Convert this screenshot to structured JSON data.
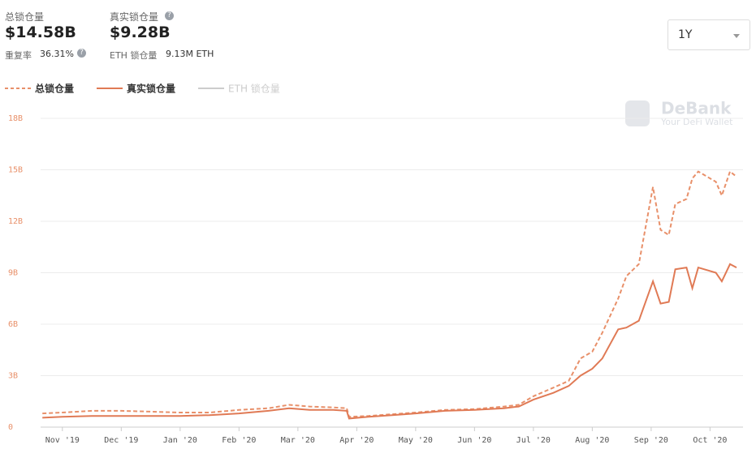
{
  "header": {
    "tvl_label": "总锁仓量",
    "tvl_value": "$14.58B",
    "dup_label": "重复率",
    "dup_value": "36.31%",
    "real_label": "真实锁仓量",
    "real_value": "$9.28B",
    "eth_label": "ETH 锁仓量",
    "eth_value": "9.13M ETH",
    "range": "1Y",
    "watermark": "DeBank",
    "watermark_sub": "Your DeFi Wallet"
  },
  "chart_data": {
    "type": "line",
    "x": [
      0.66,
      1.0,
      1.5,
      2.0,
      2.5,
      3.0,
      3.5,
      4.0,
      4.5,
      4.85,
      5.2,
      5.6,
      5.83,
      5.87,
      6.2,
      6.6,
      7.0,
      7.5,
      8.0,
      8.5,
      8.75,
      9.0,
      9.34,
      9.6,
      9.8,
      10.0,
      10.17,
      10.44,
      10.58,
      10.79,
      11.03,
      11.16,
      11.3,
      11.41,
      11.6,
      11.7,
      11.8,
      12.1,
      12.2,
      12.34,
      12.45
    ],
    "series": [
      {
        "name": "总锁仓量",
        "color": "#e8906a",
        "dash": true,
        "values": [
          0.8,
          0.85,
          0.95,
          0.95,
          0.9,
          0.85,
          0.85,
          1.0,
          1.1,
          1.3,
          1.2,
          1.15,
          1.1,
          0.6,
          0.65,
          0.75,
          0.85,
          1.0,
          1.05,
          1.2,
          1.3,
          1.8,
          2.3,
          2.7,
          4.0,
          4.4,
          5.5,
          7.5,
          8.8,
          9.5,
          14.0,
          11.5,
          11.2,
          13.0,
          13.3,
          14.5,
          14.9,
          14.3,
          13.5,
          14.9,
          14.6
        ]
      },
      {
        "name": "真实锁仓量",
        "color": "#e07a55",
        "dash": false,
        "values": [
          0.55,
          0.6,
          0.65,
          0.65,
          0.65,
          0.65,
          0.7,
          0.8,
          0.95,
          1.1,
          1.0,
          1.0,
          0.95,
          0.5,
          0.6,
          0.7,
          0.8,
          0.95,
          1.0,
          1.1,
          1.2,
          1.6,
          2.0,
          2.4,
          3.0,
          3.4,
          4.0,
          5.7,
          5.8,
          6.2,
          8.5,
          7.2,
          7.3,
          9.2,
          9.3,
          8.1,
          9.3,
          9.0,
          8.5,
          9.5,
          9.3
        ]
      },
      {
        "name": "ETH 锁仓量",
        "color": "#cccccc",
        "dash": false,
        "hidden": true,
        "values": [
          null,
          null,
          null,
          null,
          null,
          null,
          null,
          null,
          null,
          null,
          null,
          null,
          null,
          null,
          null,
          null,
          null,
          null,
          null,
          null,
          null,
          null,
          null,
          null,
          null,
          null,
          null,
          null,
          null,
          null,
          null,
          null,
          null,
          null,
          null,
          null,
          null,
          null,
          null,
          null,
          null
        ]
      }
    ],
    "xlim": [
      0.63,
      12.56
    ],
    "xticks": [
      {
        "value": 1,
        "label": "Nov '19"
      },
      {
        "value": 2,
        "label": "Dec '19"
      },
      {
        "value": 3,
        "label": "Jan '20"
      },
      {
        "value": 4,
        "label": "Feb '20"
      },
      {
        "value": 5,
        "label": "Mar '20"
      },
      {
        "value": 6,
        "label": "Apr '20"
      },
      {
        "value": 7,
        "label": "May '20"
      },
      {
        "value": 8,
        "label": "Jun '20"
      },
      {
        "value": 9,
        "label": "Jul '20"
      },
      {
        "value": 10,
        "label": "Aug '20"
      },
      {
        "value": 11,
        "label": "Sep '20"
      },
      {
        "value": 12,
        "label": "Oct '20"
      }
    ],
    "ylim": [
      0,
      18
    ],
    "yticks": [
      0,
      {
        "value": 3,
        "label": "3B"
      },
      {
        "value": 6,
        "label": "6B"
      },
      {
        "value": 9,
        "label": "9B"
      },
      {
        "value": 12,
        "label": "12B"
      },
      {
        "value": 15,
        "label": "15B"
      },
      {
        "value": 18,
        "label": "18B"
      }
    ],
    "grid": true
  }
}
